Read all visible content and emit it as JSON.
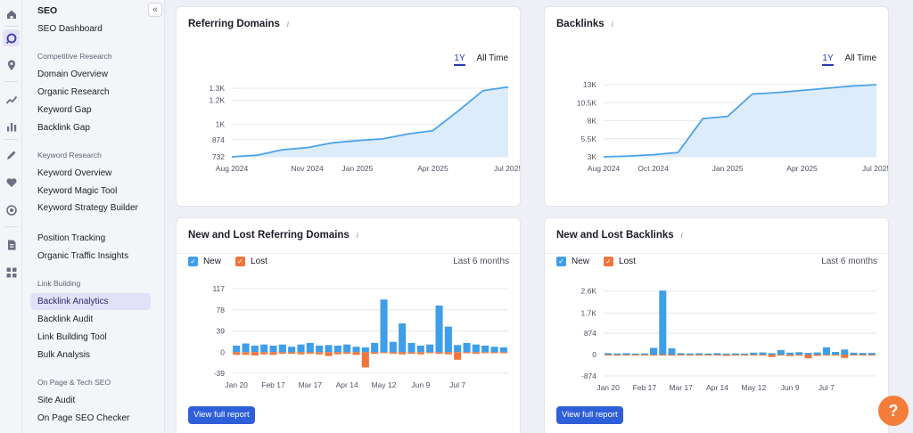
{
  "sidebar": {
    "title": "SEO",
    "collapse_glyph": "«",
    "dashboard": "SEO Dashboard",
    "sections": {
      "competitive": "Competitive Research",
      "keyword": "Keyword Research",
      "link": "Link Building",
      "onpage": "On Page & Tech SEO"
    },
    "items": {
      "domain_overview": "Domain Overview",
      "organic_research": "Organic Research",
      "keyword_gap": "Keyword Gap",
      "backlink_gap": "Backlink Gap",
      "keyword_overview": "Keyword Overview",
      "keyword_magic_tool": "Keyword Magic Tool",
      "keyword_strategy_builder": "Keyword Strategy Builder",
      "position_tracking": "Position Tracking",
      "organic_traffic_insights": "Organic Traffic Insights",
      "backlink_analytics": "Backlink Analytics",
      "backlink_audit": "Backlink Audit",
      "link_building_tool": "Link Building Tool",
      "bulk_analysis": "Bulk Analysis",
      "site_audit": "Site Audit",
      "on_page_seo_checker": "On Page SEO Checker"
    }
  },
  "cards": {
    "referring_domains": {
      "title": "Referring Domains",
      "tab_1y": "1Y",
      "tab_all": "All Time"
    },
    "backlinks": {
      "title": "Backlinks",
      "tab_1y": "1Y",
      "tab_all": "All Time"
    },
    "new_lost_domains": {
      "title": "New and Lost Referring Domains",
      "legend_new": "New",
      "legend_lost": "Lost",
      "period": "Last 6 months",
      "button": "View full report"
    },
    "new_lost_backlinks": {
      "title": "New and Lost Backlinks",
      "legend_new": "New",
      "legend_lost": "Lost",
      "period": "Last 6 months",
      "button": "View full report"
    }
  },
  "info_glyph": "i",
  "checkmark_glyph": "✓",
  "help_glyph": "?",
  "colors": {
    "accent": "#2a3bb7",
    "new": "#3f9ee8",
    "lost": "#f0753a",
    "line": "#4ba3ea",
    "area": "#dcecfb",
    "button": "#2f5fd8",
    "help": "#f47d39"
  },
  "icons": [
    "home-icon",
    "seo-icon",
    "local-icon",
    "trend-icon",
    "bar-chart-icon",
    "content-icon",
    "heart-icon",
    "target-icon",
    "report-icon",
    "apps-icon"
  ],
  "chart_data": [
    {
      "id": "referring_domains",
      "type": "area",
      "title": "Referring Domains",
      "x": [
        "Aug 2024",
        "Sep 2024",
        "Oct 2024",
        "Nov 2024",
        "Dec 2024",
        "Jan 2025",
        "Feb 2025",
        "Mar 2025",
        "Apr 2025",
        "May 2025",
        "Jun 2025",
        "Jul 2025"
      ],
      "values": [
        732,
        745,
        790,
        808,
        848,
        866,
        880,
        921,
        949,
        1110,
        1280,
        1310
      ],
      "x_tick_labels": [
        "Aug 2024",
        "Nov 2024",
        "Jan 2025",
        "Apr 2025",
        "Jul 2025"
      ],
      "x_tick_index": [
        0,
        3,
        5,
        8,
        11
      ],
      "y_ticks": [
        732,
        874,
        1000,
        1200,
        1300
      ],
      "y_tick_labels": [
        "732",
        "874",
        "1K",
        "1.2K",
        "1.3K"
      ],
      "ylim": [
        732,
        1300
      ]
    },
    {
      "id": "backlinks",
      "type": "area",
      "title": "Backlinks",
      "x": [
        "Aug 2024",
        "Sep 2024",
        "Oct 2024",
        "Nov 2024",
        "Dec 2024",
        "Jan 2025",
        "Feb 2025",
        "Mar 2025",
        "Apr 2025",
        "May 2025",
        "Jun 2025",
        "Jul 2025"
      ],
      "values": [
        3000,
        3100,
        3300,
        3600,
        8300,
        8600,
        11700,
        11900,
        12200,
        12500,
        12800,
        13000
      ],
      "x_tick_labels": [
        "Aug 2024",
        "Oct 2024",
        "Jan 2025",
        "Apr 2025",
        "Jul 2025"
      ],
      "x_tick_index": [
        0,
        2,
        5,
        8,
        11
      ],
      "y_ticks": [
        3000,
        5500,
        8000,
        10500,
        13000
      ],
      "y_tick_labels": [
        "3K",
        "5.5K",
        "8K",
        "10.5K",
        "13K"
      ],
      "ylim": [
        3000,
        13000
      ]
    },
    {
      "id": "new_lost_domains",
      "type": "bar",
      "title": "New and Lost Referring Domains",
      "series": [
        {
          "name": "New",
          "values": [
            12,
            16,
            12,
            14,
            12,
            14,
            10,
            14,
            17,
            12,
            13,
            12,
            14,
            10,
            9,
            17,
            97,
            19,
            53,
            17,
            12,
            14,
            86,
            47,
            13,
            17,
            14,
            12,
            10,
            9
          ]
        },
        {
          "name": "Lost",
          "values": [
            -5,
            -5,
            -6,
            -4,
            -5,
            -3,
            -3,
            -4,
            -3,
            -4,
            -7,
            -4,
            -3,
            -5,
            -28,
            -3,
            -2,
            -3,
            -4,
            -3,
            -4,
            -2,
            -3,
            -4,
            -14,
            -2,
            -3,
            -2,
            -2,
            -2
          ]
        }
      ],
      "x_tick_labels": [
        "Jan 20",
        "Feb 17",
        "Mar 17",
        "Apr 14",
        "May 12",
        "Jun 9",
        "Jul 7"
      ],
      "x_tick_index": [
        0,
        4,
        8,
        12,
        16,
        20,
        24
      ],
      "y_ticks": [
        -39,
        0,
        39,
        78,
        117
      ],
      "y_tick_labels": [
        "-39",
        "0",
        "39",
        "78",
        "117"
      ],
      "ylim": [
        -39,
        117
      ]
    },
    {
      "id": "new_lost_backlinks",
      "type": "bar",
      "title": "New and Lost Backlinks",
      "series": [
        {
          "name": "New",
          "values": [
            60,
            45,
            60,
            40,
            50,
            280,
            2620,
            260,
            60,
            50,
            55,
            45,
            60,
            40,
            50,
            40,
            80,
            90,
            60,
            190,
            80,
            100,
            70,
            90,
            300,
            110,
            210,
            80,
            70,
            70
          ]
        },
        {
          "name": "Lost",
          "values": [
            -20,
            -30,
            -20,
            -10,
            -15,
            -30,
            -20,
            -40,
            -20,
            -30,
            -20,
            -10,
            -30,
            -50,
            -20,
            -20,
            -30,
            -40,
            -100,
            -30,
            -60,
            -40,
            -150,
            -50,
            -20,
            -30,
            -140,
            -30,
            -20,
            -10
          ]
        }
      ],
      "x_tick_labels": [
        "Jan 20",
        "Feb 17",
        "Mar 17",
        "Apr 14",
        "May 12",
        "Jun 9",
        "Jul 7"
      ],
      "x_tick_index": [
        0,
        4,
        8,
        12,
        16,
        20,
        24
      ],
      "y_ticks": [
        -874,
        0,
        874,
        1700,
        2600
      ],
      "y_tick_labels": [
        "-874",
        "0",
        "874",
        "1.7K",
        "2.6K"
      ],
      "ylim": [
        -874,
        2700
      ]
    }
  ]
}
